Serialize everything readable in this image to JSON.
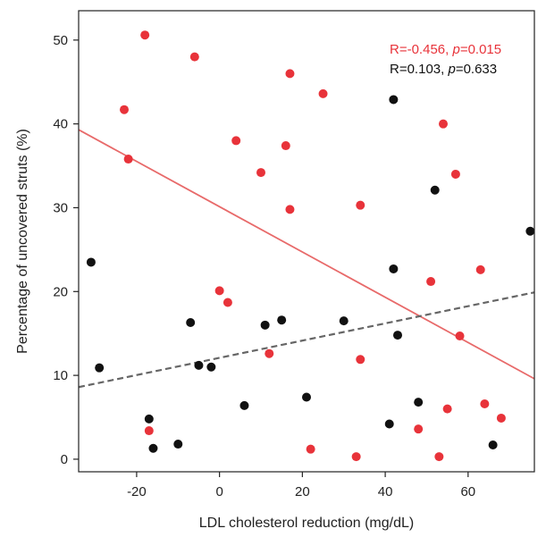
{
  "chart_data": {
    "type": "scatter",
    "title": "",
    "xlabel": "LDL cholesterol reduction (mg/dL)",
    "ylabel": "Percentage of uncovered struts (%)",
    "xlim": [
      -34,
      76
    ],
    "ylim": [
      -1.5,
      53.5
    ],
    "xticks": [
      "-20",
      "0",
      "20",
      "40",
      "60"
    ],
    "yticks": [
      "0",
      "10",
      "20",
      "30",
      "40",
      "50"
    ],
    "grid": false,
    "colors": {
      "red": "#e8333a",
      "black": "#111111",
      "red_line": "#e86a6a",
      "black_line": "#666666"
    },
    "series": [
      {
        "color": "red",
        "points": [
          [
            -18,
            50.6
          ],
          [
            -6,
            48.0
          ],
          [
            17,
            46.0
          ],
          [
            25,
            43.6
          ],
          [
            -23,
            41.7
          ],
          [
            54,
            40.0
          ],
          [
            4,
            38.0
          ],
          [
            16,
            37.4
          ],
          [
            -22,
            35.8
          ],
          [
            57,
            34.0
          ],
          [
            10,
            34.2
          ],
          [
            34,
            30.3
          ],
          [
            17,
            29.8
          ],
          [
            63,
            22.6
          ],
          [
            0,
            20.1
          ],
          [
            2,
            18.7
          ],
          [
            51,
            21.2
          ],
          [
            58,
            14.7
          ],
          [
            12,
            12.6
          ],
          [
            34,
            11.9
          ],
          [
            -17,
            3.4
          ],
          [
            64,
            6.6
          ],
          [
            55,
            6.0
          ],
          [
            48,
            3.6
          ],
          [
            68,
            4.9
          ],
          [
            22,
            1.2
          ],
          [
            33,
            0.3
          ],
          [
            53,
            0.3
          ]
        ],
        "fit": {
          "x": [
            -34,
            76
          ],
          "y": [
            39.3,
            9.6
          ]
        },
        "annotation": {
          "r": "R=-0.456, ",
          "p_label": "p",
          "p_value": "=0.015"
        }
      },
      {
        "color": "black",
        "points": [
          [
            -31,
            23.5
          ],
          [
            -29,
            10.9
          ],
          [
            -17,
            4.8
          ],
          [
            -16,
            1.3
          ],
          [
            -10,
            1.8
          ],
          [
            -7,
            16.3
          ],
          [
            -5,
            11.2
          ],
          [
            -2,
            11.0
          ],
          [
            6,
            6.4
          ],
          [
            11,
            16.0
          ],
          [
            15,
            16.6
          ],
          [
            21,
            7.4
          ],
          [
            30,
            16.5
          ],
          [
            41,
            4.2
          ],
          [
            42,
            42.9
          ],
          [
            42,
            22.7
          ],
          [
            43,
            14.8
          ],
          [
            48,
            6.8
          ],
          [
            52,
            32.1
          ],
          [
            66,
            1.7
          ],
          [
            75,
            27.2
          ]
        ],
        "fit": {
          "x": [
            -34,
            76
          ],
          "y": [
            8.6,
            19.9
          ]
        },
        "annotation": {
          "r": "R=0.103, ",
          "p_label": "p",
          "p_value": "=0.633"
        }
      }
    ]
  }
}
